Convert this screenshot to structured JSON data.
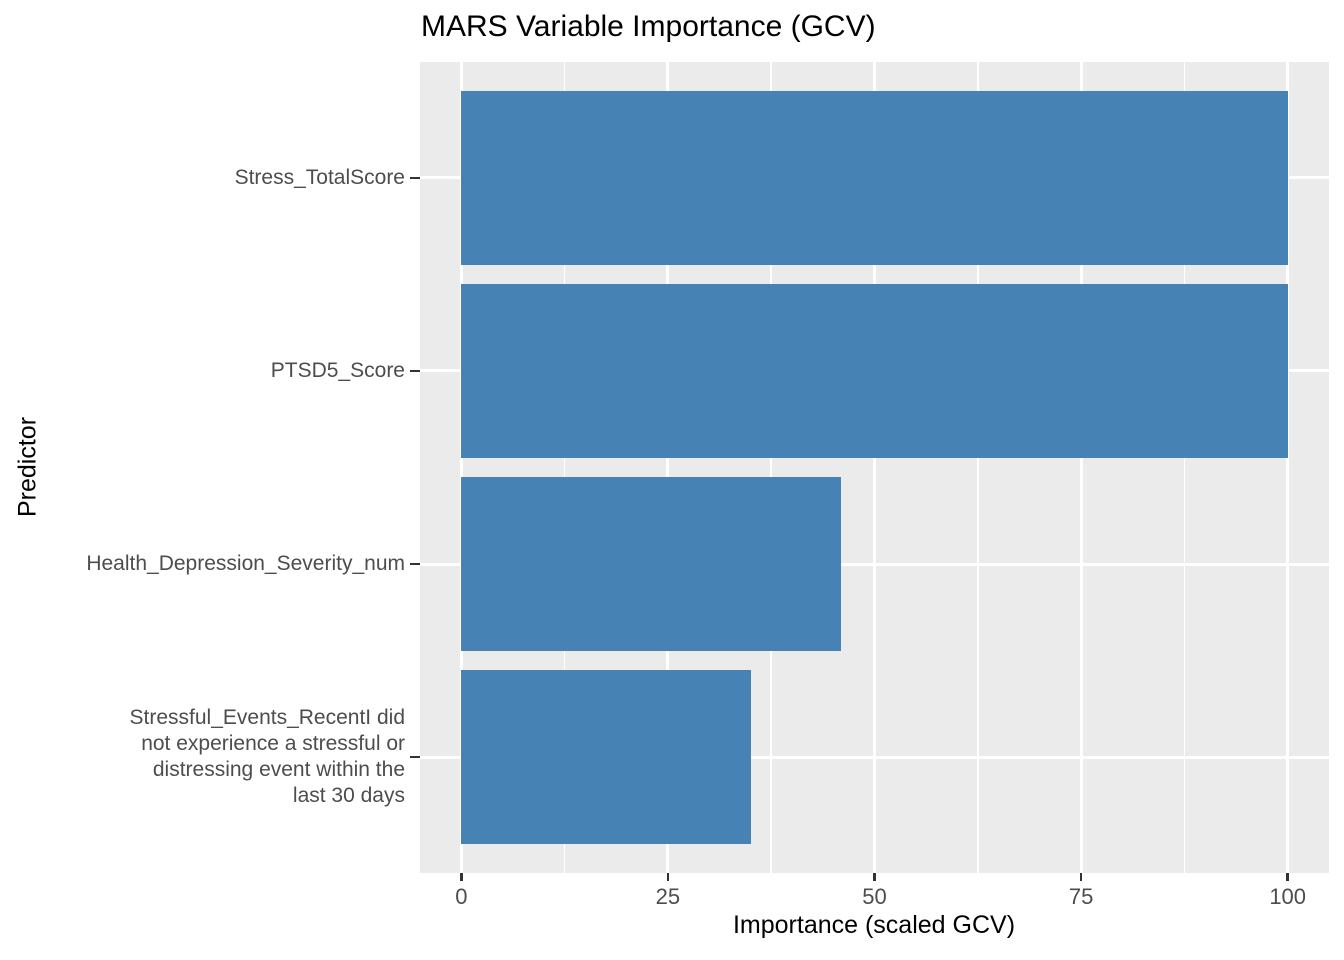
{
  "chart_data": {
    "type": "bar",
    "orientation": "horizontal",
    "title": "MARS Variable Importance (GCV)",
    "xlabel": "Importance (scaled GCV)",
    "ylabel": "Predictor",
    "categories": [
      "Stress_TotalScore",
      "PTSD5_Score",
      "Health_Depression_Severity_num",
      "Stressful_Events_RecentI did not experience a stressful or distressing event within the last 30 days"
    ],
    "category_label_lines": [
      [
        "Stress_TotalScore"
      ],
      [
        "PTSD5_Score"
      ],
      [
        "Health_Depression_Severity_num"
      ],
      [
        "Stressful_Events_RecentI did",
        "not experience a stressful or",
        "distressing event within the",
        "last 30 days"
      ]
    ],
    "values": [
      100,
      100,
      46,
      35
    ],
    "xlim": [
      0,
      100
    ],
    "xticks": [
      0,
      25,
      50,
      75,
      100
    ],
    "xtick_labels": [
      "0",
      "25",
      "50",
      "75",
      "100"
    ],
    "minor_xticks": [
      12.5,
      37.5,
      62.5,
      87.5
    ],
    "grid": true,
    "legend": "none",
    "colors": {
      "bar": "#4682B4",
      "panel_background": "#EBEBEB",
      "gridline": "#FFFFFF",
      "tick_text": "#4D4D4D",
      "tick_mark": "#333333",
      "title_text": "#000000",
      "page_background": "#FFFFFF"
    }
  }
}
